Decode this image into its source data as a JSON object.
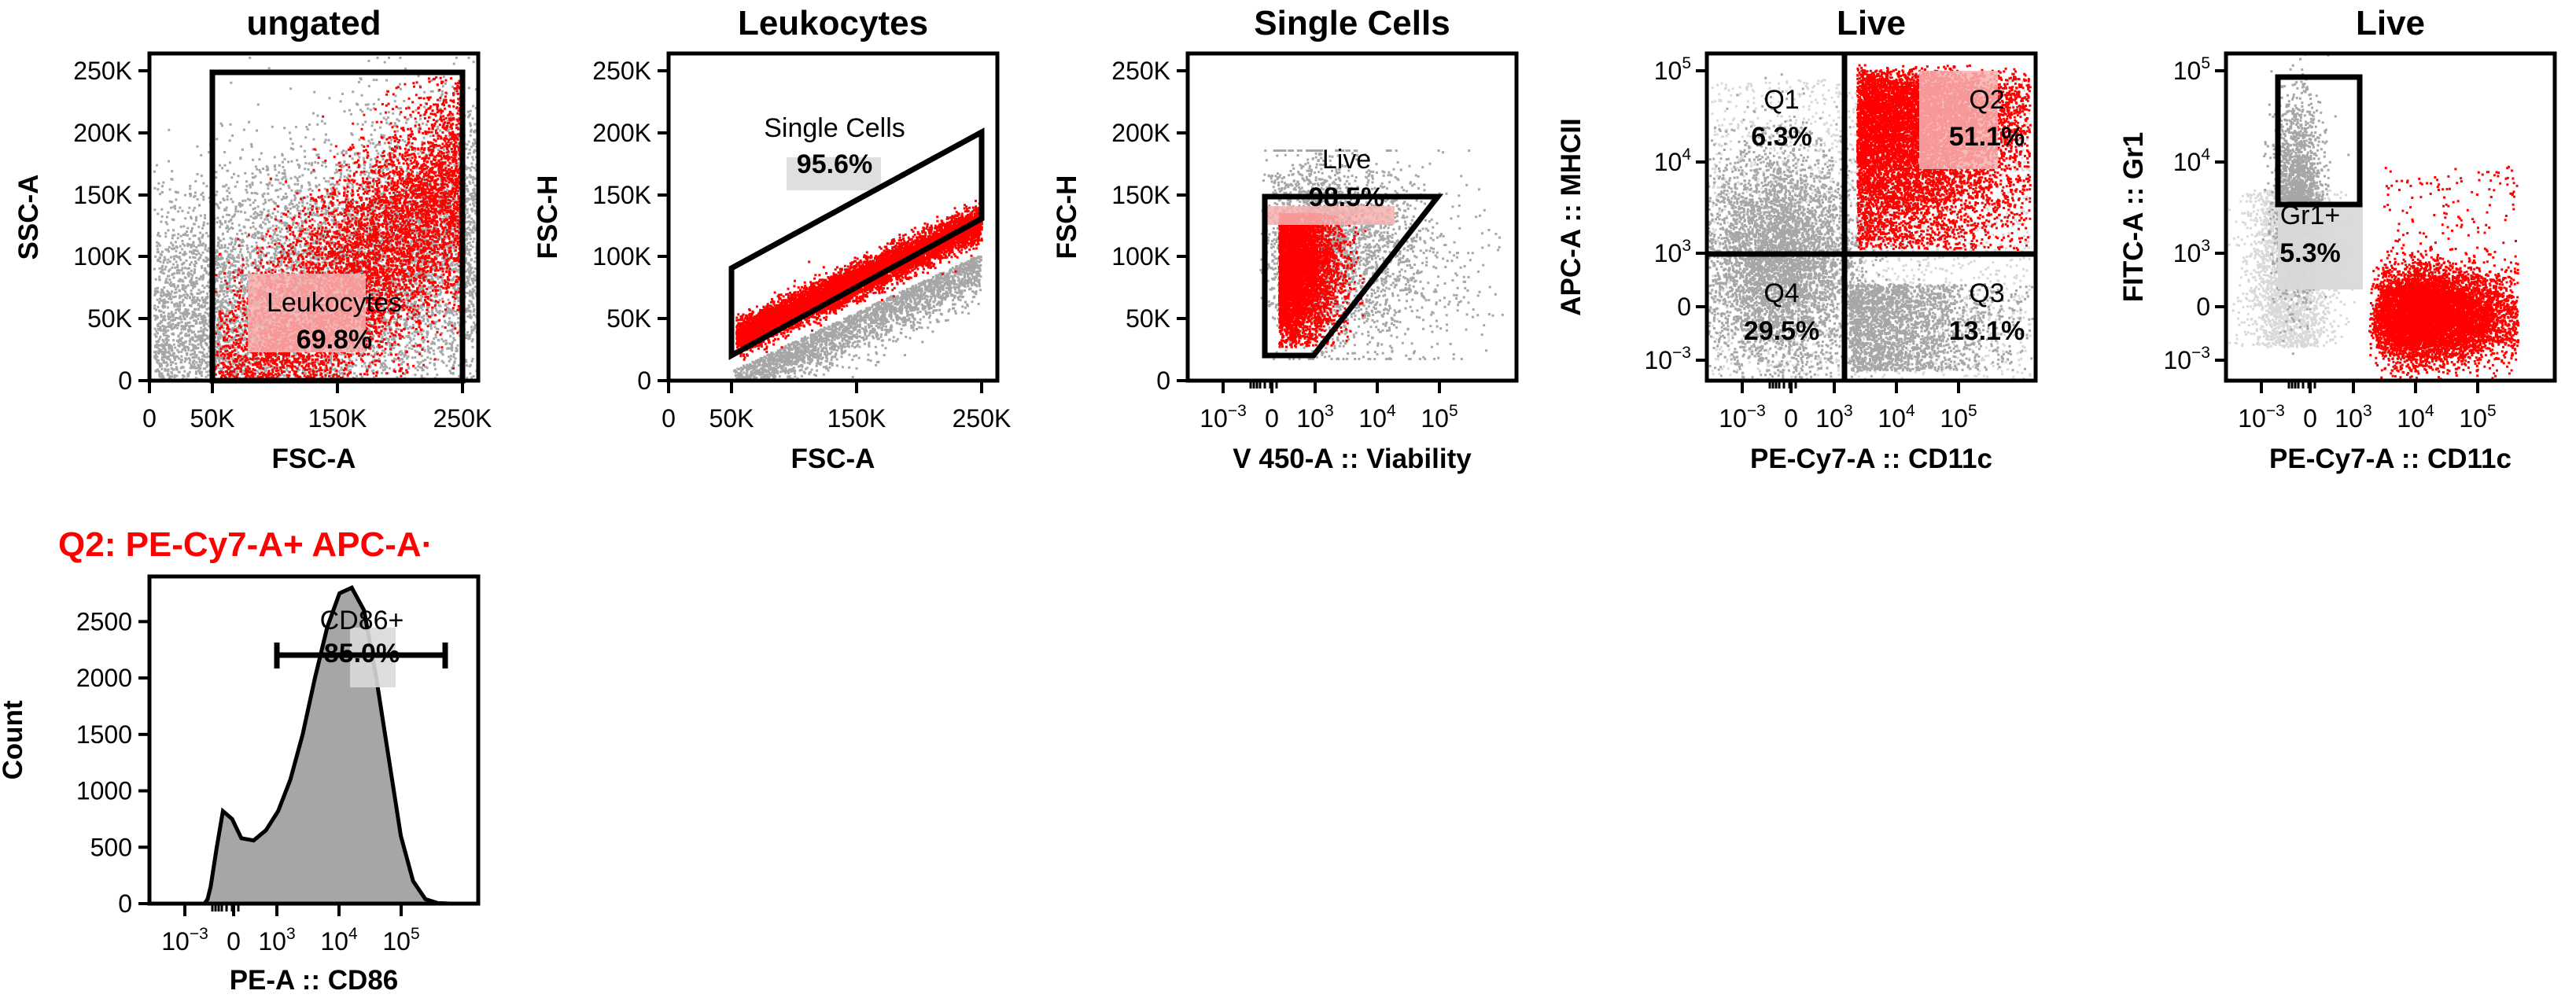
{
  "colors": {
    "gated": "#ff0000",
    "ungated": "#a6a6a6",
    "light_gray": "#d9d9d9",
    "highlight": "#f6b1b1"
  },
  "chart_data": [
    {
      "id": "p1",
      "type": "scatter",
      "title": "ungated",
      "xlabel": "FSC-A",
      "ylabel": "SSC-A",
      "scale": "linear",
      "xlim": [
        0,
        262144
      ],
      "ylim": [
        0,
        262144
      ],
      "xticks": [
        "0",
        "50K",
        "150K",
        "250K"
      ],
      "xtick_values": [
        0,
        50000,
        150000,
        250000
      ],
      "yticks": [
        "0",
        "50K",
        "100K",
        "150K",
        "200K",
        "250K"
      ],
      "ytick_values": [
        0,
        50000,
        100000,
        150000,
        200000,
        250000
      ],
      "gate": {
        "name": "Leukocytes",
        "percent": "69.8%",
        "x_range": [
          50000,
          250000
        ],
        "y_range": [
          0,
          250000
        ]
      }
    },
    {
      "id": "p2",
      "type": "scatter",
      "title": "Leukocytes",
      "xlabel": "FSC-A",
      "ylabel": "FSC-H",
      "scale": "linear",
      "xlim": [
        0,
        262144
      ],
      "ylim": [
        0,
        262144
      ],
      "xticks": [
        "0",
        "50K",
        "150K",
        "250K"
      ],
      "xtick_values": [
        0,
        50000,
        150000,
        250000
      ],
      "yticks": [
        "0",
        "50K",
        "100K",
        "150K",
        "200K",
        "250K"
      ],
      "ytick_values": [
        0,
        50000,
        100000,
        150000,
        200000,
        250000
      ],
      "gate": {
        "name": "Single Cells",
        "percent": "95.6%",
        "polygon": [
          [
            50000,
            20000
          ],
          [
            50000,
            90000
          ],
          [
            250000,
            200000
          ],
          [
            250000,
            130000
          ]
        ]
      }
    },
    {
      "id": "p3",
      "type": "scatter",
      "title": "Single Cells",
      "xlabel": "V 450-A :: Viability",
      "ylabel": "FSC-H",
      "scale": "biexponential-x",
      "xlim": [
        -1000,
        100000
      ],
      "ylim": [
        0,
        262144
      ],
      "xticks": [
        "10^-3",
        "0",
        "10^3",
        "10^4",
        "10^5"
      ],
      "yticks": [
        "0",
        "50K",
        "100K",
        "150K",
        "200K",
        "250K"
      ],
      "ytick_values": [
        0,
        50000,
        100000,
        150000,
        200000,
        250000
      ],
      "gate": {
        "name": "Live",
        "percent": "98.5%"
      }
    },
    {
      "id": "p4",
      "type": "scatter",
      "title": "Live",
      "xlabel": "PE-Cy7-A :: CD11c",
      "ylabel": "APC-A :: MHCII",
      "scale": "biexponential",
      "xticks": [
        "10^-3",
        "0",
        "10^3",
        "10^4",
        "10^5"
      ],
      "yticks": [
        "10^-3",
        "0",
        "10^3",
        "10^4",
        "10^5"
      ],
      "quadrants": [
        {
          "name": "Q1",
          "percent": "6.3%"
        },
        {
          "name": "Q2",
          "percent": "51.1%"
        },
        {
          "name": "Q3",
          "percent": "13.1%"
        },
        {
          "name": "Q4",
          "percent": "29.5%"
        }
      ]
    },
    {
      "id": "p5",
      "type": "scatter",
      "title": "Live",
      "xlabel": "PE-Cy7-A :: CD11c",
      "ylabel": "FITC-A :: Gr1",
      "scale": "biexponential",
      "xticks": [
        "10^-3",
        "0",
        "10^3",
        "10^4",
        "10^5"
      ],
      "yticks": [
        "10^-3",
        "0",
        "10^3",
        "10^4",
        "10^5"
      ],
      "gate": {
        "name": "Gr1+",
        "percent": "5.3%"
      }
    },
    {
      "id": "p6",
      "type": "area",
      "title": "Q2: PE-Cy7-A+ APC-A·",
      "xlabel": "PE-A :: CD86",
      "ylabel": "Count",
      "scale": "biexponential-x",
      "ylim": [
        0,
        2900
      ],
      "xticks": [
        "10^-3",
        "0",
        "10^3",
        "10^4",
        "10^5"
      ],
      "yticks": [
        "0",
        "500",
        "1000",
        "1500",
        "2000",
        "2500"
      ],
      "ytick_values": [
        0,
        500,
        1000,
        1500,
        2000,
        2500
      ],
      "histogram": {
        "x": [
          0,
          5,
          10,
          20,
          30,
          45,
          60,
          80,
          100,
          120,
          140,
          160,
          180,
          200,
          220,
          240,
          260,
          280,
          300,
          320,
          340,
          360,
          380,
          400
        ],
        "y": [
          0,
          40,
          150,
          500,
          820,
          750,
          580,
          560,
          650,
          820,
          1100,
          1500,
          2000,
          2450,
          2750,
          2800,
          2600,
          2000,
          1300,
          600,
          200,
          40,
          5,
          0
        ]
      },
      "gate": {
        "name": "CD86+",
        "percent": "85.0%"
      }
    }
  ]
}
